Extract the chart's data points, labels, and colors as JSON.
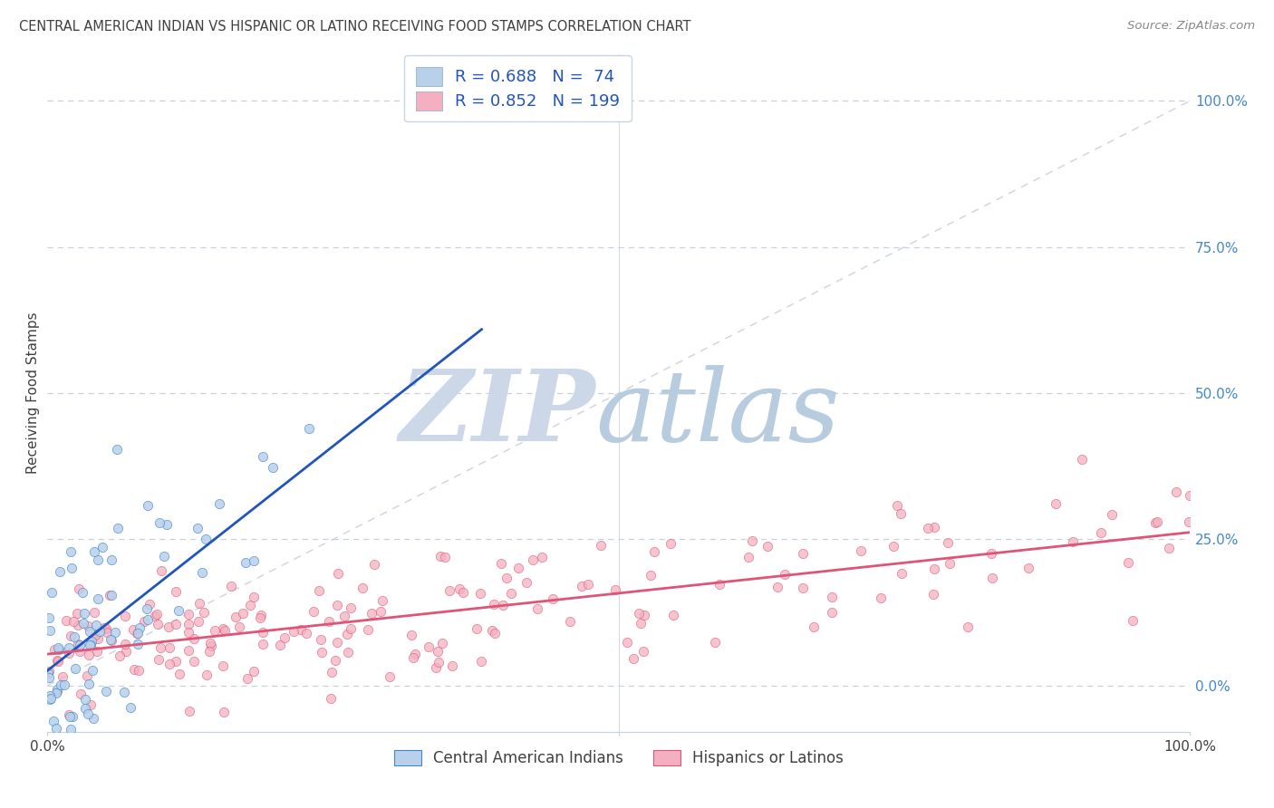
{
  "title": "CENTRAL AMERICAN INDIAN VS HISPANIC OR LATINO RECEIVING FOOD STAMPS CORRELATION CHART",
  "source": "Source: ZipAtlas.com",
  "ylabel": "Receiving Food Stamps",
  "ytick_positions": [
    0,
    25,
    50,
    75,
    100
  ],
  "legend_entries": [
    {
      "label": "Central American Indians",
      "color": "#b8d0ea",
      "R": 0.688,
      "N": 74
    },
    {
      "label": "Hispanics or Latinos",
      "color": "#f4b0c0",
      "R": 0.852,
      "N": 199
    }
  ],
  "blue_line_color": "#2255bb",
  "pink_line_color": "#dd5577",
  "blue_scatter_face": "#b8d0ea",
  "blue_scatter_edge": "#4488cc",
  "pink_scatter_face": "#f4b0c0",
  "pink_scatter_edge": "#dd5577",
  "legend_text_color": "#2255bb",
  "title_color": "#404040",
  "source_color": "#888888",
  "zip_color": "#ccd8e8",
  "atlas_color": "#b8cce0",
  "background_color": "#ffffff",
  "grid_color": "#c8d0dc",
  "diag_color": "#c0c8d8",
  "right_tick_color": "#4488cc",
  "seed": 12,
  "blue_n": 74,
  "pink_n": 199
}
